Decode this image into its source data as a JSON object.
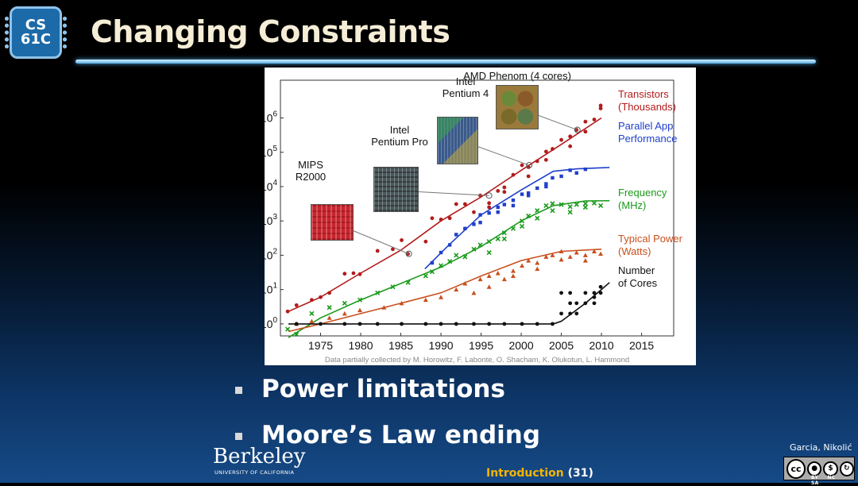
{
  "logo": {
    "line1": "CS",
    "line2": "61C"
  },
  "title": "Changing Constraints",
  "bullets": [
    "Power limitations",
    "Moore’s Law ending"
  ],
  "footer": {
    "institution": "Berkeley",
    "institution_sub": "UNIVERSITY OF CALIFORNIA",
    "section": "Introduction",
    "page": "(31)",
    "authors": "Garcia, Nikolić",
    "license_icons": [
      "cc",
      "by",
      "nc",
      "sa"
    ],
    "license_labels": [
      "BY",
      "NC",
      "SA"
    ]
  },
  "colors": {
    "transistors": "#b31b1b",
    "parallel": "#1f3fcc",
    "frequency": "#1a9a1a",
    "power": "#c8501e",
    "cores": "#111111",
    "title_text": "#f5edd6",
    "section_accent": "#f4b400"
  },
  "chart_data": {
    "type": "scatter",
    "x_ticks": [
      1975,
      1980,
      1985,
      1990,
      1995,
      2000,
      2005,
      2010,
      2015
    ],
    "y_ticks": [
      {
        "base": "10",
        "exp": "0"
      },
      {
        "base": "10",
        "exp": "1"
      },
      {
        "base": "10",
        "exp": "2"
      },
      {
        "base": "10",
        "exp": "3"
      },
      {
        "base": "10",
        "exp": "4"
      },
      {
        "base": "10",
        "exp": "5"
      },
      {
        "base": "10",
        "exp": "6"
      }
    ],
    "y_scale": "log",
    "xlim": [
      1970,
      2019
    ],
    "ylim_log10": [
      -0.35,
      7.1
    ],
    "caption": "Data partially collected by M. Horowitz, F. Labonte, O. Shacham, K. Olukotun, L. Hammond",
    "processors": [
      {
        "name": [
          "MIPS",
          "R2000"
        ],
        "year": 1986,
        "transistors": 110,
        "icon": "mips-chip-icon"
      },
      {
        "name": [
          "Intel",
          "Pentium Pro"
        ],
        "year": 1996,
        "transistors": 5500,
        "icon": "pentium-pro-chip-icon"
      },
      {
        "name": [
          "Intel",
          "Pentium 4"
        ],
        "year": 2001,
        "transistors": 42000,
        "icon": "pentium4-chip-icon"
      },
      {
        "name": [
          "AMD Phenom (4 cores)"
        ],
        "year": 2007,
        "transistors": 450000,
        "icon": "amd-phenom-chip-icon"
      }
    ],
    "series": [
      {
        "name": [
          "Transistors",
          "(Thousands)"
        ],
        "color": "#b31b1b",
        "marker": "circle",
        "trend": [
          [
            1971,
            2.3
          ],
          [
            1975,
            6
          ],
          [
            1980,
            30
          ],
          [
            1985,
            140
          ],
          [
            1990,
            1000
          ],
          [
            1995,
            5000
          ],
          [
            2000,
            30000
          ],
          [
            2005,
            170000
          ],
          [
            2010,
            1000000
          ]
        ],
        "points": [
          [
            1971,
            2.3
          ],
          [
            1972,
            3.5
          ],
          [
            1974,
            5
          ],
          [
            1975,
            6
          ],
          [
            1976,
            8
          ],
          [
            1978,
            29
          ],
          [
            1979,
            30
          ],
          [
            1980,
            28
          ],
          [
            1982,
            134
          ],
          [
            1984,
            150
          ],
          [
            1985,
            275
          ],
          [
            1986,
            110
          ],
          [
            1988,
            250
          ],
          [
            1989,
            1200
          ],
          [
            1990,
            1100
          ],
          [
            1991,
            1200
          ],
          [
            1992,
            3100
          ],
          [
            1993,
            3100
          ],
          [
            1994,
            1800
          ],
          [
            1995,
            5500
          ],
          [
            1996,
            3300
          ],
          [
            1997,
            7500
          ],
          [
            1998,
            9500
          ],
          [
            1999,
            22000
          ],
          [
            2000,
            42000
          ],
          [
            2001,
            37000
          ],
          [
            2002,
            55000
          ],
          [
            2003,
            105000
          ],
          [
            2004,
            125000
          ],
          [
            2005,
            230000
          ],
          [
            2006,
            290000
          ],
          [
            2007,
            450000
          ],
          [
            2008,
            780000
          ],
          [
            2009,
            900000
          ],
          [
            2010,
            1900000
          ],
          [
            2010,
            2300000
          ],
          [
            1996,
            2500
          ],
          [
            1998,
            7000
          ],
          [
            2001,
            20000
          ],
          [
            2003,
            60000
          ],
          [
            2006,
            150000
          ],
          [
            2008,
            400000
          ]
        ]
      },
      {
        "name": [
          "Parallel App",
          "Performance"
        ],
        "color": "#1f3fcc",
        "marker": "square",
        "trend": [
          [
            1988,
            40
          ],
          [
            1991,
            200
          ],
          [
            1995,
            1500
          ],
          [
            2000,
            8000
          ],
          [
            2004,
            28000
          ],
          [
            2007,
            33000
          ],
          [
            2011,
            36000
          ]
        ],
        "points": [
          [
            1989,
            60
          ],
          [
            1990,
            120
          ],
          [
            1991,
            200
          ],
          [
            1992,
            400
          ],
          [
            1993,
            600
          ],
          [
            1994,
            800
          ],
          [
            1995,
            1500
          ],
          [
            1996,
            1700
          ],
          [
            1997,
            2500
          ],
          [
            1998,
            3000
          ],
          [
            1999,
            4000
          ],
          [
            2000,
            6000
          ],
          [
            2001,
            6500
          ],
          [
            2002,
            9000
          ],
          [
            2003,
            12000
          ],
          [
            2004,
            18000
          ],
          [
            2005,
            20000
          ],
          [
            2006,
            30000
          ],
          [
            2007,
            25000
          ],
          [
            2008,
            32000
          ],
          [
            1995,
            900
          ],
          [
            1997,
            1800
          ],
          [
            1999,
            2800
          ],
          [
            2001,
            5500
          ],
          [
            2003,
            10000
          ]
        ]
      },
      {
        "name": [
          "Frequency",
          "(MHz)"
        ],
        "color": "#1a9a1a",
        "marker": "x",
        "trend": [
          [
            1971,
            0.4
          ],
          [
            1975,
            1.5
          ],
          [
            1980,
            5
          ],
          [
            1985,
            15
          ],
          [
            1990,
            45
          ],
          [
            1995,
            180
          ],
          [
            2000,
            1000
          ],
          [
            2004,
            2800
          ],
          [
            2008,
            3800
          ],
          [
            2011,
            3900
          ]
        ],
        "points": [
          [
            1971,
            0.7
          ],
          [
            1972,
            0.5
          ],
          [
            1974,
            2
          ],
          [
            1976,
            3
          ],
          [
            1978,
            4
          ],
          [
            1980,
            5
          ],
          [
            1982,
            8
          ],
          [
            1984,
            12
          ],
          [
            1986,
            16
          ],
          [
            1988,
            25
          ],
          [
            1989,
            33
          ],
          [
            1990,
            50
          ],
          [
            1991,
            66
          ],
          [
            1992,
            100
          ],
          [
            1993,
            90
          ],
          [
            1994,
            150
          ],
          [
            1995,
            200
          ],
          [
            1996,
            250
          ],
          [
            1997,
            300
          ],
          [
            1998,
            450
          ],
          [
            1999,
            600
          ],
          [
            2000,
            1000
          ],
          [
            2001,
            1400
          ],
          [
            2002,
            2000
          ],
          [
            2003,
            2800
          ],
          [
            2004,
            3200
          ],
          [
            2005,
            3000
          ],
          [
            2006,
            2600
          ],
          [
            2007,
            3000
          ],
          [
            2008,
            3200
          ],
          [
            2009,
            3300
          ],
          [
            2010,
            2800
          ],
          [
            1996,
            120
          ],
          [
            1998,
            300
          ],
          [
            2000,
            700
          ],
          [
            2002,
            1200
          ],
          [
            2004,
            2000
          ],
          [
            2006,
            1800
          ],
          [
            2008,
            2500
          ]
        ]
      },
      {
        "name": [
          "Typical Power",
          "(Watts)"
        ],
        "color": "#c8501e",
        "marker": "triangle",
        "trend": [
          [
            1971,
            0.6
          ],
          [
            1975,
            1
          ],
          [
            1980,
            2
          ],
          [
            1985,
            4
          ],
          [
            1990,
            8
          ],
          [
            1995,
            25
          ],
          [
            2000,
            70
          ],
          [
            2005,
            130
          ],
          [
            2010,
            150
          ]
        ],
        "points": [
          [
            1972,
            1
          ],
          [
            1974,
            1.2
          ],
          [
            1976,
            1.5
          ],
          [
            1978,
            2
          ],
          [
            1980,
            2.5
          ],
          [
            1983,
            3
          ],
          [
            1985,
            4
          ],
          [
            1988,
            5
          ],
          [
            1990,
            6
          ],
          [
            1992,
            10
          ],
          [
            1993,
            15
          ],
          [
            1994,
            8
          ],
          [
            1995,
            20
          ],
          [
            1996,
            25
          ],
          [
            1997,
            30
          ],
          [
            1998,
            20
          ],
          [
            1999,
            35
          ],
          [
            2000,
            50
          ],
          [
            2001,
            70
          ],
          [
            2002,
            60
          ],
          [
            2003,
            90
          ],
          [
            2004,
            100
          ],
          [
            2005,
            130
          ],
          [
            2006,
            90
          ],
          [
            2007,
            120
          ],
          [
            2008,
            100
          ],
          [
            2009,
            130
          ],
          [
            2010,
            110
          ],
          [
            1996,
            12
          ],
          [
            1999,
            25
          ],
          [
            2002,
            40
          ],
          [
            2005,
            75
          ],
          [
            2008,
            70
          ]
        ]
      },
      {
        "name": [
          "Number",
          "of Cores"
        ],
        "color": "#111111",
        "marker": "dot",
        "trend": [
          [
            1971,
            1
          ],
          [
            2004,
            1
          ],
          [
            2005,
            1.2
          ],
          [
            2008,
            4
          ],
          [
            2011,
            16
          ]
        ],
        "points": [
          [
            1972,
            1
          ],
          [
            1975,
            1
          ],
          [
            1978,
            1
          ],
          [
            1980,
            1
          ],
          [
            1982,
            1
          ],
          [
            1985,
            1
          ],
          [
            1988,
            1
          ],
          [
            1990,
            1
          ],
          [
            1992,
            1
          ],
          [
            1994,
            1
          ],
          [
            1996,
            1
          ],
          [
            1998,
            1
          ],
          [
            2000,
            1
          ],
          [
            2002,
            1
          ],
          [
            2004,
            1
          ],
          [
            2005,
            2
          ],
          [
            2006,
            2
          ],
          [
            2006,
            4
          ],
          [
            2007,
            4
          ],
          [
            2007,
            2
          ],
          [
            2008,
            4
          ],
          [
            2008,
            8
          ],
          [
            2009,
            6
          ],
          [
            2009,
            8
          ],
          [
            2010,
            8
          ],
          [
            2010,
            12
          ],
          [
            2005,
            8
          ],
          [
            2006,
            8
          ],
          [
            2009,
            4
          ]
        ]
      }
    ]
  }
}
